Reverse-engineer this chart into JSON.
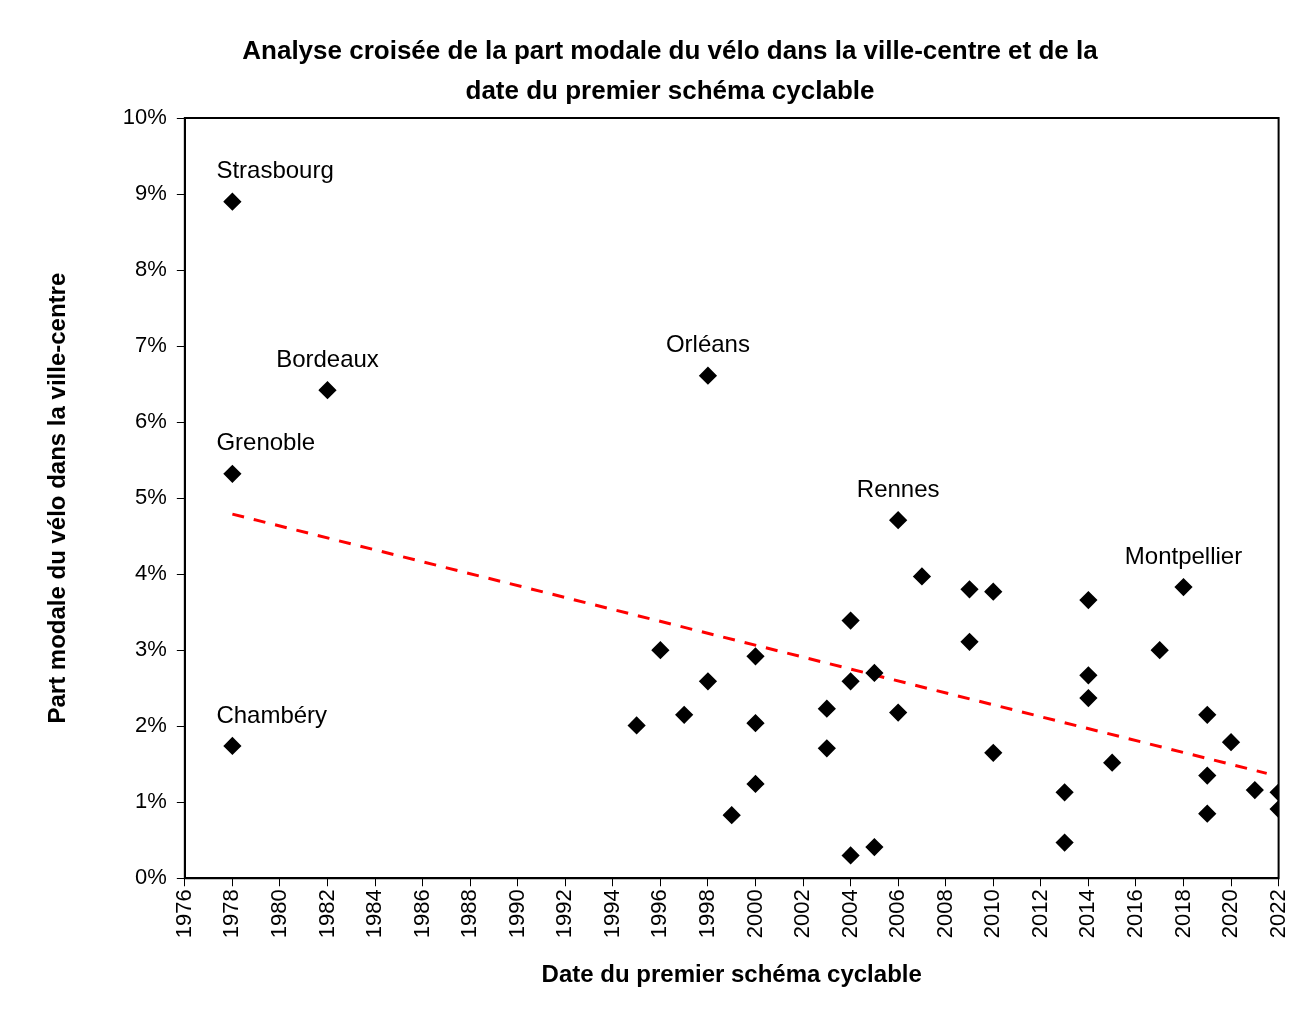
{
  "chart_data": {
    "type": "scatter",
    "title": "Analyse croisée de la part modale du vélo dans la ville-centre et de la date du premier schéma cyclable",
    "xlabel": "Date du premier schéma cyclable",
    "ylabel": "Part modale du vélo dans la ville-centre",
    "xlim": [
      1976,
      2022
    ],
    "xticks": [
      1976,
      1978,
      1980,
      1982,
      1984,
      1986,
      1988,
      1990,
      1992,
      1994,
      1996,
      1998,
      2000,
      2002,
      2004,
      2006,
      2008,
      2010,
      2012,
      2014,
      2016,
      2018,
      2020,
      2022
    ],
    "ylim": [
      0,
      10
    ],
    "yticks": [
      {
        "value": 0,
        "label": "0%"
      },
      {
        "value": 1,
        "label": "1%"
      },
      {
        "value": 2,
        "label": "2%"
      },
      {
        "value": 3,
        "label": "3%"
      },
      {
        "value": 4,
        "label": "4%"
      },
      {
        "value": 5,
        "label": "5%"
      },
      {
        "value": 6,
        "label": "6%"
      },
      {
        "value": 7,
        "label": "7%"
      },
      {
        "value": 8,
        "label": "8%"
      },
      {
        "value": 9,
        "label": "9%"
      },
      {
        "value": 10,
        "label": "10%"
      }
    ],
    "grid": false,
    "legend": false,
    "series": [
      {
        "type": "scatter",
        "color": "#000000",
        "marker": "diamond",
        "x": [
          1978,
          1978,
          1978,
          1982,
          1998,
          1995,
          1996,
          1997,
          1998,
          1999,
          2000,
          2000,
          2000,
          2003,
          2003,
          2004,
          2004,
          2004,
          2005,
          2005,
          2006,
          2006,
          2007,
          2009,
          2009,
          2010,
          2010,
          2013,
          2013,
          2014,
          2014,
          2014,
          2015,
          2017,
          2018,
          2019,
          2019,
          2019,
          2020,
          2021,
          2022,
          2022
        ],
        "values": [
          8.9,
          5.32,
          1.74,
          6.42,
          6.61,
          2.01,
          3.0,
          2.15,
          2.59,
          0.83,
          2.92,
          2.04,
          1.24,
          2.23,
          1.71,
          3.39,
          2.59,
          0.3,
          2.7,
          0.41,
          4.71,
          2.18,
          3.97,
          3.8,
          3.11,
          3.77,
          1.65,
          1.13,
          0.47,
          3.66,
          2.67,
          2.37,
          1.52,
          3.0,
          3.83,
          2.15,
          1.35,
          0.85,
          1.79,
          1.16,
          1.13,
          0.91
        ]
      },
      {
        "type": "line",
        "color": "#ff0000",
        "marker": "none",
        "line_style": "dashed",
        "x": [
          1978,
          2021.5
        ],
        "values": [
          4.79,
          1.38
        ]
      }
    ],
    "annotations": [
      {
        "text": "Strasbourg",
        "x": 1978,
        "y": 8.9
      },
      {
        "text": "Bordeaux",
        "x": 1982,
        "y": 6.42
      },
      {
        "text": "Grenoble",
        "x": 1978,
        "y": 5.32
      },
      {
        "text": "Chambéry",
        "x": 1978,
        "y": 1.74
      },
      {
        "text": "Orléans",
        "x": 1998,
        "y": 6.61
      },
      {
        "text": "Rennes",
        "x": 2006,
        "y": 4.71
      },
      {
        "text": "Montpellier",
        "x": 2018,
        "y": 3.83
      }
    ]
  }
}
